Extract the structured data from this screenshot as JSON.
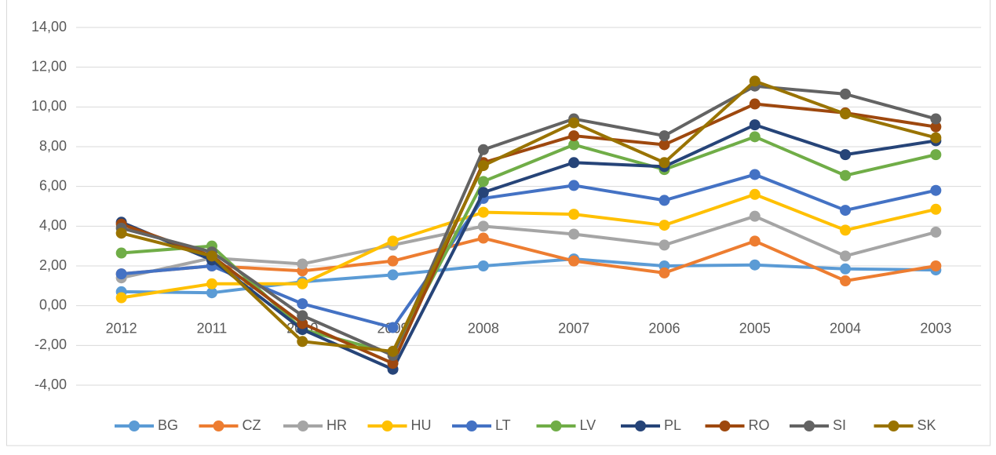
{
  "chart_data": {
    "type": "line",
    "categories": [
      "2012",
      "2011",
      "2010",
      "2009",
      "2008",
      "2007",
      "2006",
      "2005",
      "2004",
      "2003"
    ],
    "ylim": [
      -4,
      14
    ],
    "yticks": [
      {
        "value": -4,
        "label": "-4,00"
      },
      {
        "value": -2,
        "label": "-2,00"
      },
      {
        "value": 0,
        "label": "0,00"
      },
      {
        "value": 2,
        "label": "2,00"
      },
      {
        "value": 4,
        "label": "4,00"
      },
      {
        "value": 6,
        "label": "6,00"
      },
      {
        "value": 8,
        "label": "8,00"
      },
      {
        "value": 10,
        "label": "10,00"
      },
      {
        "value": 12,
        "label": "12,00"
      },
      {
        "value": 14,
        "label": "14,00"
      }
    ],
    "grid": true,
    "legend": "bottom",
    "series": [
      {
        "name": "BG",
        "color": "#5b9bd5",
        "values": [
          0.7,
          0.65,
          1.2,
          1.55,
          2.0,
          2.35,
          2.0,
          2.05,
          1.85,
          1.8
        ]
      },
      {
        "name": "CZ",
        "color": "#ed7d31",
        "values": [
          1.6,
          2.0,
          1.75,
          2.25,
          3.4,
          2.25,
          1.65,
          3.25,
          1.25,
          2.0
        ]
      },
      {
        "name": "HR",
        "color": "#a5a5a5",
        "values": [
          1.4,
          2.4,
          2.1,
          3.05,
          4.0,
          3.6,
          3.05,
          4.5,
          2.5,
          3.7
        ]
      },
      {
        "name": "HU",
        "color": "#ffc000",
        "values": [
          0.4,
          1.1,
          1.1,
          3.25,
          4.7,
          4.6,
          4.05,
          5.6,
          3.8,
          4.85
        ]
      },
      {
        "name": "LT",
        "color": "#4472c4",
        "values": [
          1.6,
          2.0,
          0.1,
          -1.1,
          5.4,
          6.05,
          5.3,
          6.6,
          4.8,
          5.8
        ]
      },
      {
        "name": "LV",
        "color": "#70ad47",
        "values": [
          2.65,
          3.0,
          -1.2,
          -2.4,
          6.25,
          8.1,
          6.85,
          8.5,
          6.55,
          7.6
        ]
      },
      {
        "name": "PL",
        "color": "#264478",
        "values": [
          4.2,
          2.3,
          -1.2,
          -3.2,
          5.7,
          7.2,
          7.0,
          9.1,
          7.6,
          8.3
        ]
      },
      {
        "name": "RO",
        "color": "#9e480e",
        "values": [
          4.1,
          2.5,
          -0.9,
          -2.9,
          7.2,
          8.55,
          8.1,
          10.15,
          9.7,
          9.0
        ]
      },
      {
        "name": "SI",
        "color": "#636363",
        "values": [
          3.9,
          2.7,
          -0.5,
          -2.5,
          7.85,
          9.4,
          8.55,
          11.05,
          10.65,
          9.4
        ]
      },
      {
        "name": "SK",
        "color": "#997300",
        "values": [
          3.65,
          2.5,
          -1.8,
          -2.3,
          7.05,
          9.2,
          7.2,
          11.3,
          9.65,
          8.45
        ]
      }
    ]
  }
}
